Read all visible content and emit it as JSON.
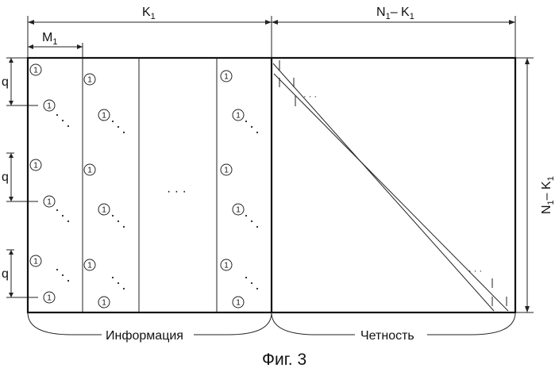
{
  "labels": {
    "k1": "K",
    "k1_sub": "1",
    "m1": "M",
    "m1_sub": "1",
    "n1_left": "N",
    "n1_left_sub": "1",
    "n1_minus": "– K",
    "n1_right_sub": "1",
    "v_n": "N",
    "v_n_sub": "1",
    "v_minus": "– K",
    "v_k_sub": "1",
    "q": "q",
    "one": "1",
    "dots": "· · ·",
    "information": "Информация",
    "parity": "Четность",
    "caption": "Фиг. 3",
    "tick": "1"
  }
}
